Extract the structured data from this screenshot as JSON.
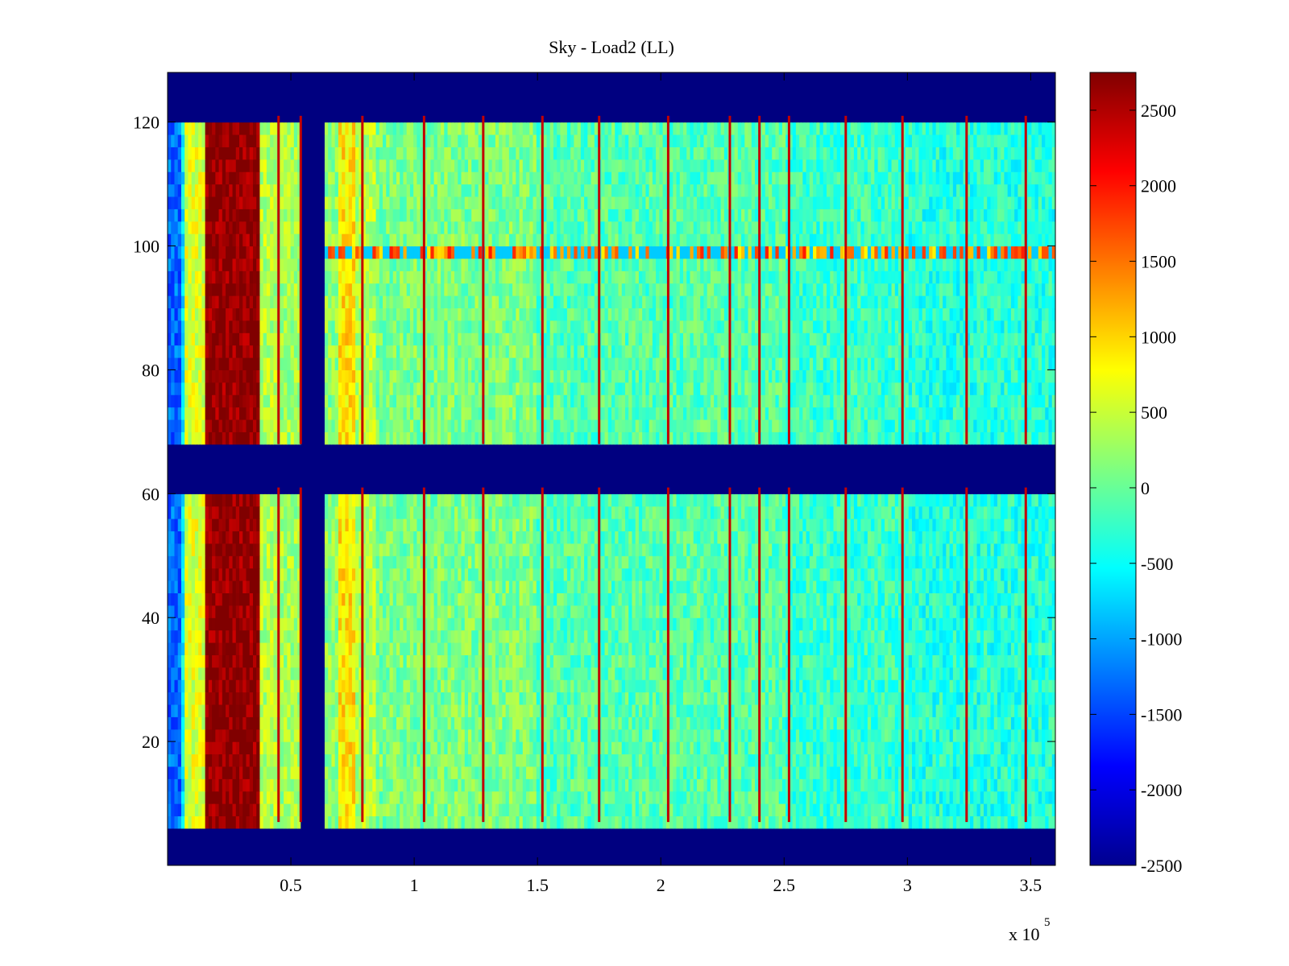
{
  "chart_data": {
    "type": "heatmap",
    "title": "Sky - Load2 (LL)",
    "xlabel": "",
    "ylabel": "",
    "x_exponent_label": "x 10",
    "x_exponent_power": "5",
    "xlim": [
      0,
      3.6
    ],
    "ylim": [
      0,
      128
    ],
    "x_ticks": [
      {
        "value": 0.5,
        "label": "0.5"
      },
      {
        "value": 1,
        "label": "1"
      },
      {
        "value": 1.5,
        "label": "1.5"
      },
      {
        "value": 2,
        "label": "2"
      },
      {
        "value": 2.5,
        "label": "2.5"
      },
      {
        "value": 3,
        "label": "3"
      },
      {
        "value": 3.5,
        "label": "3.5"
      }
    ],
    "y_ticks": [
      {
        "value": 20,
        "label": "20"
      },
      {
        "value": 40,
        "label": "40"
      },
      {
        "value": 60,
        "label": "60"
      },
      {
        "value": 80,
        "label": "80"
      },
      {
        "value": 100,
        "label": "100"
      },
      {
        "value": 120,
        "label": "120"
      }
    ],
    "colorbar": {
      "colormap": "jet",
      "range": [
        -2500,
        2750
      ],
      "ticks": [
        {
          "value": 2500,
          "label": "2500"
        },
        {
          "value": 2000,
          "label": "2000"
        },
        {
          "value": 1500,
          "label": "1500"
        },
        {
          "value": 1000,
          "label": "1000"
        },
        {
          "value": 500,
          "label": "500"
        },
        {
          "value": 0,
          "label": "0"
        },
        {
          "value": -500,
          "label": "-500"
        },
        {
          "value": -1000,
          "label": "-1000"
        },
        {
          "value": -1500,
          "label": "-1500"
        },
        {
          "value": -2000,
          "label": "-2000"
        },
        {
          "value": -2500,
          "label": "-2500"
        }
      ]
    },
    "masked_rows": [
      [
        0,
        7
      ],
      [
        61,
        68
      ],
      [
        121,
        128
      ]
    ],
    "masked_value": -2600,
    "background_value": -100,
    "column_bands": [
      {
        "x0": 0.0,
        "x1": 0.05,
        "value": -1300
      },
      {
        "x0": 0.05,
        "x1": 0.07,
        "value": -600
      },
      {
        "x0": 0.07,
        "x1": 0.15,
        "value": 600
      },
      {
        "x0": 0.15,
        "x1": 0.38,
        "value": 2700
      },
      {
        "x0": 0.38,
        "x1": 0.45,
        "value": 400
      },
      {
        "x0": 0.45,
        "x1": 0.54,
        "value": 300
      },
      {
        "x0": 0.54,
        "x1": 0.64,
        "value": -2600
      },
      {
        "x0": 0.64,
        "x1": 0.69,
        "value": 200
      },
      {
        "x0": 0.69,
        "x1": 0.76,
        "value": 900
      },
      {
        "x0": 0.76,
        "x1": 0.85,
        "value": 400
      },
      {
        "x0": 0.85,
        "x1": 1.5,
        "value": 100
      },
      {
        "x0": 1.5,
        "x1": 2.5,
        "value": -100
      },
      {
        "x0": 2.5,
        "x1": 3.0,
        "value": -250
      },
      {
        "x0": 3.0,
        "x1": 3.6,
        "value": -350
      }
    ],
    "spike_columns": [
      0.45,
      0.54,
      0.79,
      1.04,
      1.28,
      1.52,
      1.75,
      2.03,
      2.28,
      2.4,
      2.52,
      2.75,
      2.98,
      3.24,
      3.48
    ],
    "spike_value": 2400,
    "stripe_row": {
      "y0": 99,
      "y1": 101,
      "value": 1400
    }
  }
}
